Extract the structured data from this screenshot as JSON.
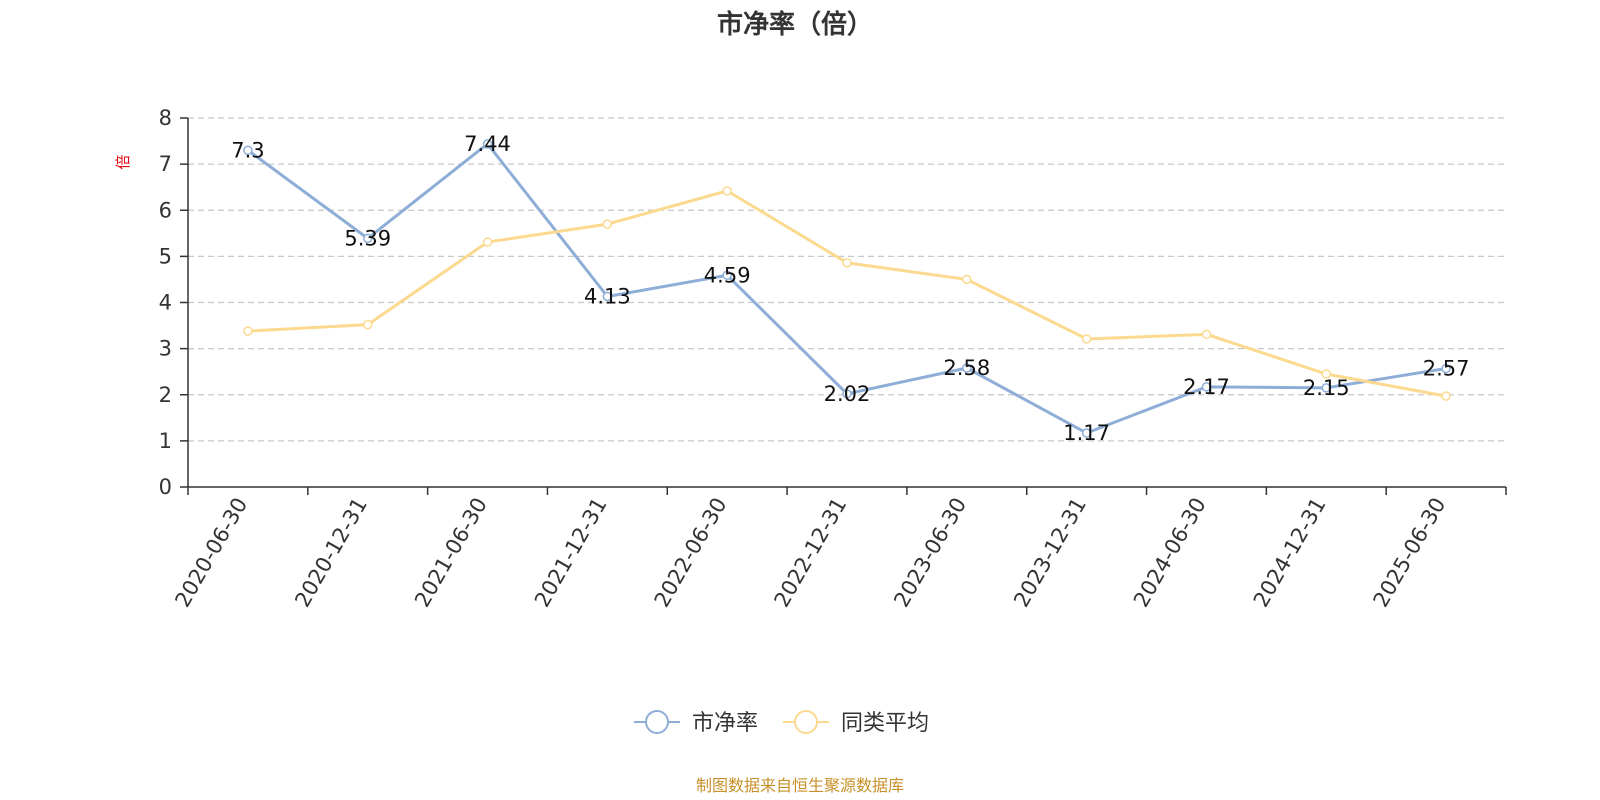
{
  "chart_data": {
    "type": "line",
    "title": "市净率（倍）",
    "ylabel": "倍",
    "xlabel": "",
    "ylim": [
      0,
      8
    ],
    "yticks": [
      0,
      1,
      2,
      3,
      4,
      5,
      6,
      7,
      8
    ],
    "grid": true,
    "legend_position": "bottom-center",
    "categories": [
      "2020-06-30",
      "2020-12-31",
      "2021-06-30",
      "2021-12-31",
      "2022-06-30",
      "2022-12-31",
      "2023-06-30",
      "2023-12-31",
      "2024-06-30",
      "2024-12-31",
      "2025-06-30"
    ],
    "series": [
      {
        "name": "市净率",
        "color": "#8eaed8",
        "show_labels": true,
        "values": [
          7.3,
          5.39,
          7.44,
          4.13,
          4.59,
          2.02,
          2.58,
          1.17,
          2.17,
          2.15,
          2.57
        ]
      },
      {
        "name": "同类平均",
        "color": "#fbd98f",
        "show_labels": false,
        "values": [
          3.38,
          3.52,
          5.31,
          5.7,
          6.42,
          4.86,
          4.5,
          3.21,
          3.31,
          2.45,
          1.97
        ]
      }
    ]
  },
  "footer": {
    "source": "制图数据来自恒生聚源数据库"
  }
}
